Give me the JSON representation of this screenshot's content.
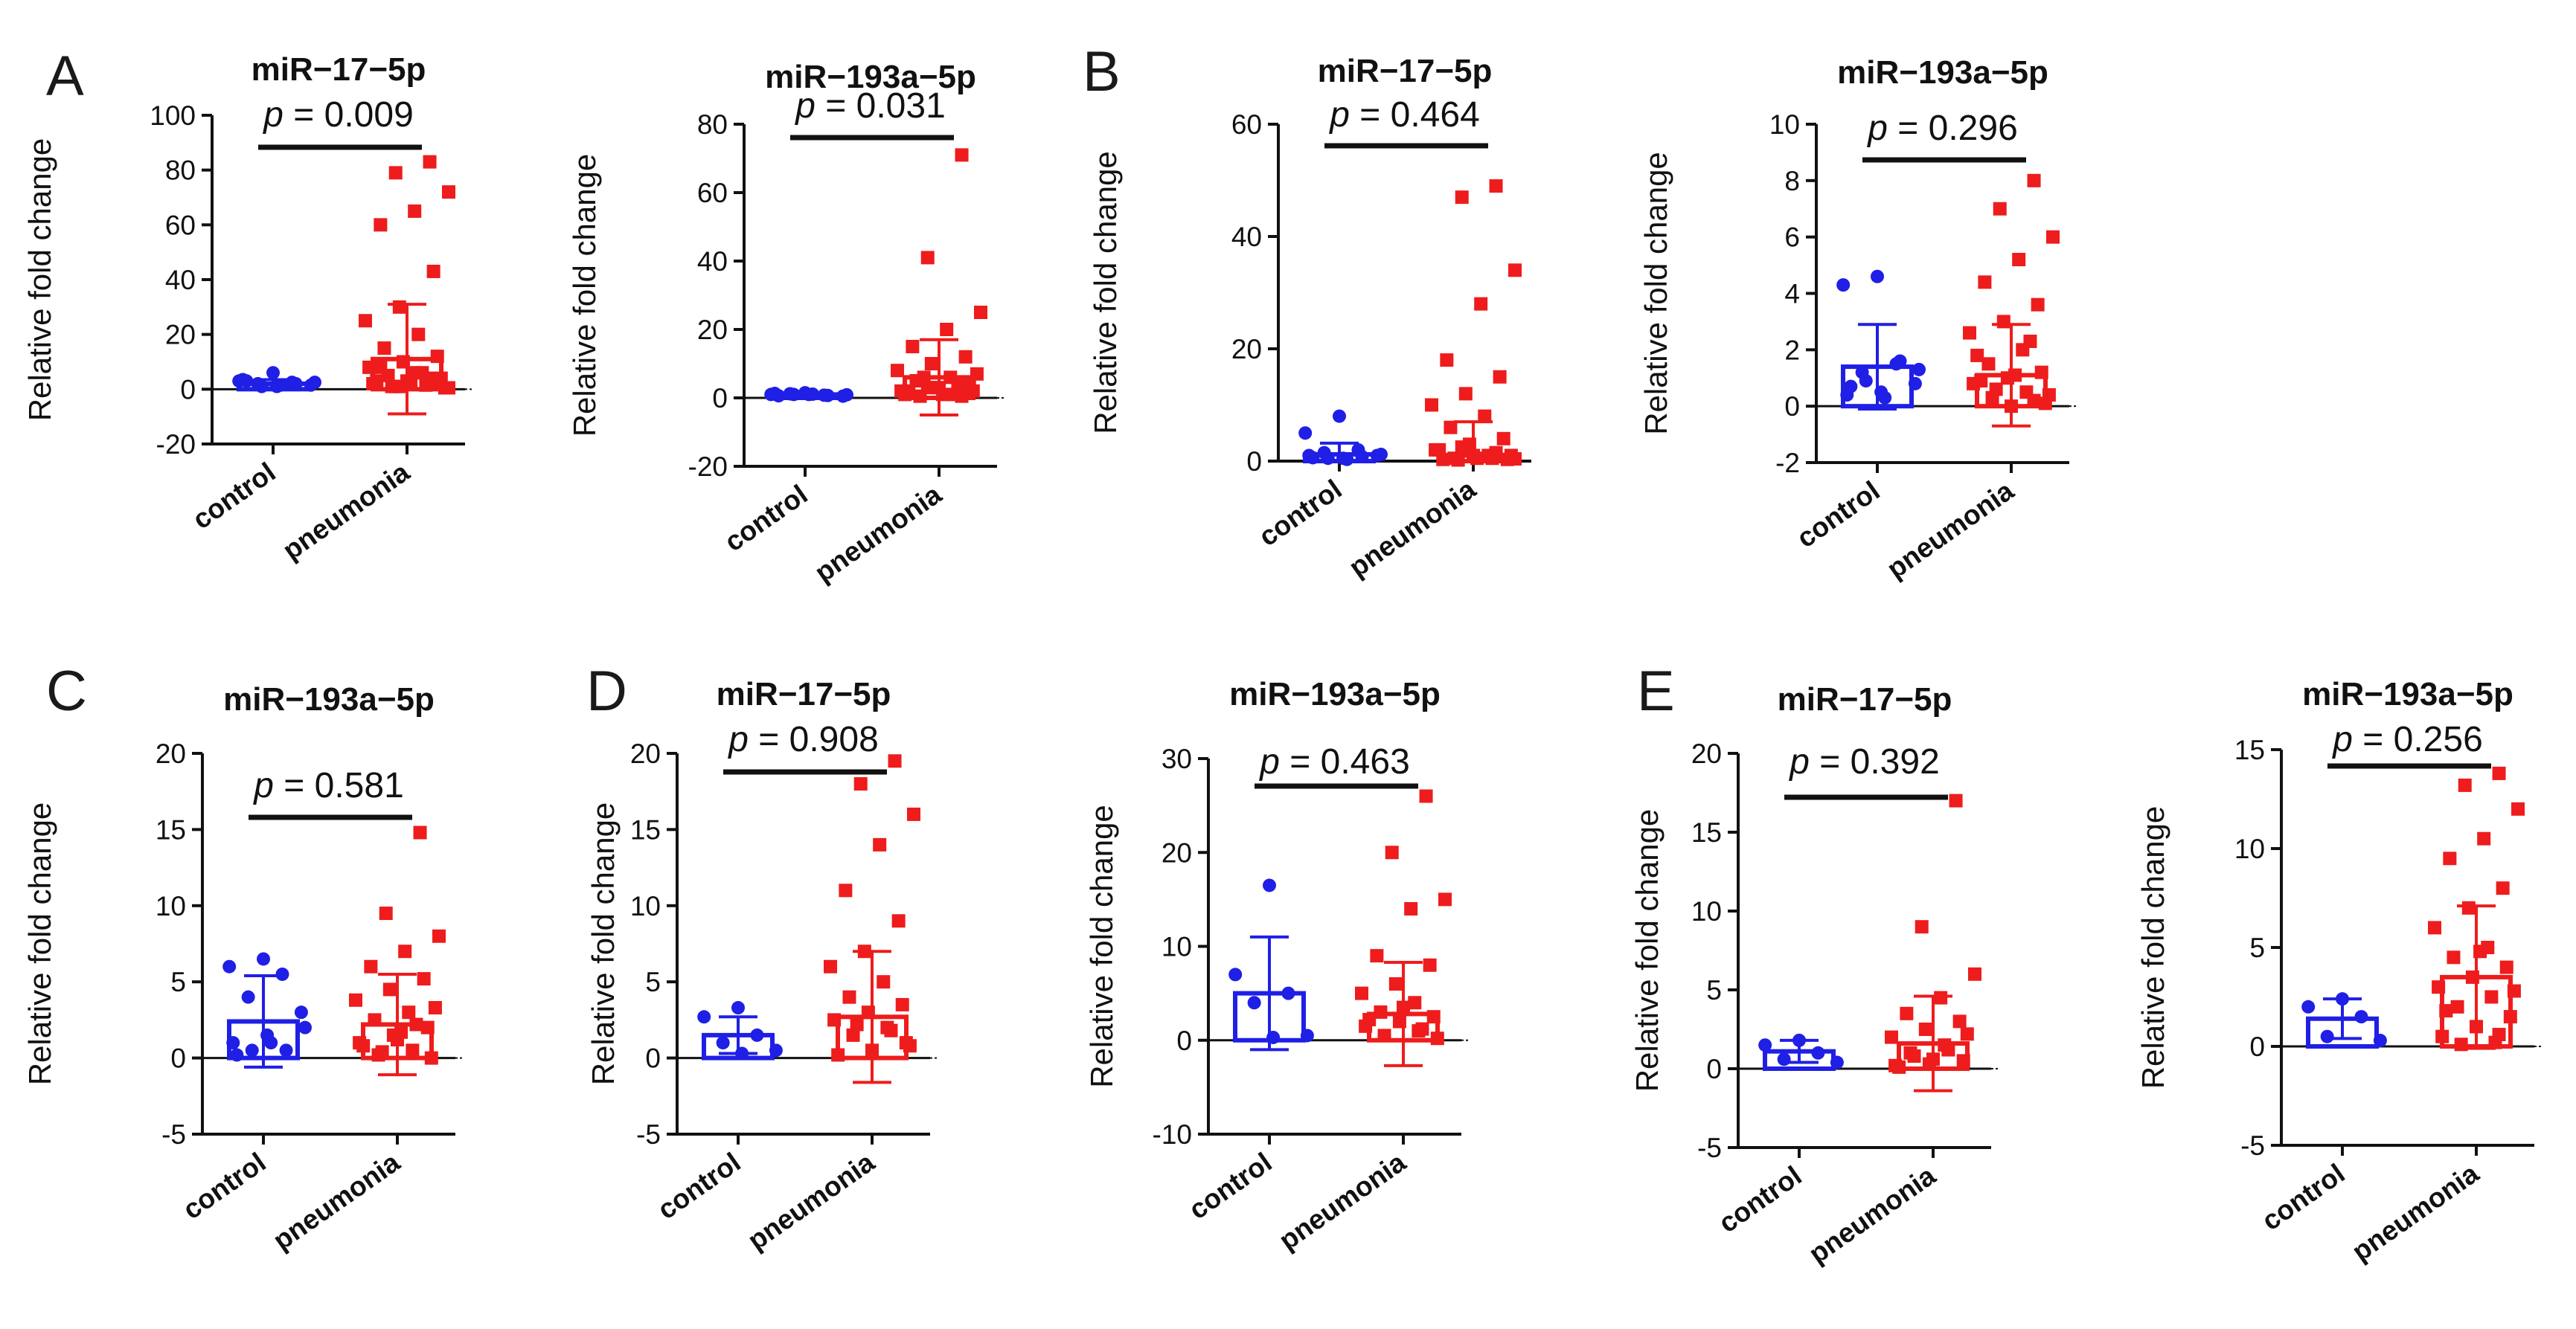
{
  "figure": {
    "panel_letters": [
      "A",
      "B",
      "C",
      "D",
      "E"
    ]
  },
  "chart_data": [
    {
      "type": "bar",
      "panel": "A",
      "title": "miR−17−5p",
      "ylabel": "Relative fold change",
      "ylim": [
        -20,
        100
      ],
      "yticks": [
        -20,
        0,
        20,
        40,
        60,
        80,
        100
      ],
      "p_label": "p",
      "p_text": " = 0.009",
      "colors": {
        "control": "#1f1fe6",
        "pneumonia": "#ee1c1c"
      },
      "categories": [
        "control",
        "pneumonia"
      ],
      "series": [
        {
          "name": "control",
          "mean": 2,
          "sd": 1.5,
          "points": [
            6,
            3,
            2.5,
            2,
            1.5,
            1,
            3.5,
            2,
            1,
            2.5,
            1.5,
            3
          ]
        },
        {
          "name": "pneumonia",
          "mean": 11,
          "sd": 20,
          "points": [
            83,
            79,
            72,
            65,
            60,
            43,
            30,
            25,
            20,
            15,
            12,
            10,
            8,
            6,
            5,
            4,
            3,
            2,
            1.5,
            1,
            0.5,
            2,
            3,
            4,
            1,
            0.5,
            6,
            8,
            2,
            1
          ]
        }
      ]
    },
    {
      "type": "bar",
      "panel": "A",
      "title": "miR−193a−5p",
      "ylabel": "Relative fold change",
      "ylim": [
        -20,
        80
      ],
      "yticks": [
        -20,
        0,
        20,
        40,
        60,
        80
      ],
      "p_label": "p",
      "p_text": " = 0.031",
      "colors": {
        "control": "#1f1fe6",
        "pneumonia": "#ee1c1c"
      },
      "categories": [
        "control",
        "pneumonia"
      ],
      "series": [
        {
          "name": "control",
          "mean": 1,
          "sd": 0.5,
          "points": [
            1.5,
            1,
            0.8,
            1.2,
            0.5,
            1,
            1.3,
            0.7,
            1,
            0.9,
            1.1,
            0.6
          ]
        },
        {
          "name": "pneumonia",
          "mean": 6,
          "sd": 11,
          "points": [
            71,
            41,
            25,
            20,
            15,
            12,
            10,
            8,
            6,
            5,
            4,
            3,
            2,
            1,
            0.5,
            2,
            3,
            1,
            4,
            6,
            7,
            1,
            2,
            0.5,
            3
          ]
        }
      ]
    },
    {
      "type": "bar",
      "panel": "B",
      "title": "miR−17−5p",
      "ylabel": "Relative fold change",
      "ylim": [
        0,
        60
      ],
      "yticks": [
        0,
        20,
        40,
        60
      ],
      "p_label": "p",
      "p_text": " = 0.464",
      "colors": {
        "control": "#1f1fe6",
        "pneumonia": "#ee1c1c"
      },
      "categories": [
        "control",
        "pneumonia"
      ],
      "series": [
        {
          "name": "control",
          "mean": 1.2,
          "sd": 2,
          "points": [
            8,
            5,
            2,
            1.5,
            1,
            0.5,
            1,
            0.8,
            0.5,
            1.2,
            0.3,
            0.6
          ]
        },
        {
          "name": "pneumonia",
          "mean": 1,
          "sd": 6,
          "points": [
            49,
            47,
            34,
            28,
            18,
            15,
            12,
            10,
            8,
            6,
            4,
            3,
            2,
            1,
            0.5,
            0.3,
            1,
            2,
            0.5,
            0.2,
            1,
            0.5,
            0.3,
            1.5,
            2.5,
            0.4
          ]
        }
      ]
    },
    {
      "type": "bar",
      "panel": "B",
      "title": "miR−193a−5p",
      "ylabel": "Relative fold change",
      "ylim": [
        -2,
        10
      ],
      "yticks": [
        -2,
        0,
        2,
        4,
        6,
        8,
        10
      ],
      "p_label": "p",
      "p_text": " = 0.296",
      "colors": {
        "control": "#1f1fe6",
        "pneumonia": "#ee1c1c"
      },
      "categories": [
        "control",
        "pneumonia"
      ],
      "series": [
        {
          "name": "control",
          "mean": 1.4,
          "sd": 1.5,
          "points": [
            4.6,
            4.3,
            1.5,
            1.2,
            0.8,
            0.5,
            0.4,
            1.6,
            0.9,
            1.3,
            0.3,
            0.7
          ]
        },
        {
          "name": "pneumonia",
          "mean": 1.1,
          "sd": 1.8,
          "points": [
            8,
            7,
            6,
            5.2,
            4.4,
            3.6,
            3,
            2.6,
            2,
            1.5,
            1.2,
            1,
            0.8,
            0.5,
            0.3,
            0.1,
            0,
            1.8,
            2.3,
            0.6,
            0.4,
            1.1,
            0.9,
            0.2
          ]
        }
      ]
    },
    {
      "type": "bar",
      "panel": "C",
      "title": "miR−193a−5p",
      "ylabel": "Relative fold change",
      "ylim": [
        -5,
        20
      ],
      "yticks": [
        -5,
        0,
        5,
        10,
        15,
        20
      ],
      "p_label": "p",
      "p_text": " = 0.581",
      "colors": {
        "control": "#1f1fe6",
        "pneumonia": "#ee1c1c"
      },
      "categories": [
        "control",
        "pneumonia"
      ],
      "series": [
        {
          "name": "control",
          "mean": 2.4,
          "sd": 3,
          "points": [
            6.5,
            6,
            5.5,
            4,
            3,
            1.5,
            1,
            0.5,
            0.5,
            2,
            1,
            0.2
          ]
        },
        {
          "name": "pneumonia",
          "mean": 2.2,
          "sd": 3.3,
          "points": [
            14.8,
            9.5,
            8,
            7,
            6,
            5.2,
            4.5,
            3.8,
            3,
            2.5,
            2,
            1.5,
            1,
            0.5,
            0.2,
            0,
            1.2,
            0.8,
            2.2,
            0.4,
            3.3,
            1.7
          ]
        }
      ]
    },
    {
      "type": "bar",
      "panel": "D",
      "title": "miR−17−5p",
      "ylabel": "Relative fold change",
      "ylim": [
        -5,
        20
      ],
      "yticks": [
        -5,
        0,
        5,
        10,
        15,
        20
      ],
      "p_label": "p",
      "p_text": " = 0.908",
      "colors": {
        "control": "#1f1fe6",
        "pneumonia": "#ee1c1c"
      },
      "categories": [
        "control",
        "pneumonia"
      ],
      "series": [
        {
          "name": "control",
          "mean": 1.5,
          "sd": 1.2,
          "points": [
            3.3,
            2.7,
            1.5,
            1,
            0.5,
            0.3
          ]
        },
        {
          "name": "pneumonia",
          "mean": 2.7,
          "sd": 4.3,
          "points": [
            19.5,
            18,
            16,
            14,
            11,
            9,
            7,
            6,
            5,
            4,
            3.5,
            3,
            2.5,
            2,
            1.5,
            1,
            0.5,
            0.2,
            1.8,
            2.2,
            0.8
          ]
        }
      ]
    },
    {
      "type": "bar",
      "panel": "D",
      "title": "miR−193a−5p",
      "ylabel": "Relative fold change",
      "ylim": [
        -10,
        30
      ],
      "yticks": [
        -10,
        0,
        10,
        20,
        30
      ],
      "p_label": "p",
      "p_text": " = 0.463",
      "colors": {
        "control": "#1f1fe6",
        "pneumonia": "#ee1c1c"
      },
      "categories": [
        "control",
        "pneumonia"
      ],
      "series": [
        {
          "name": "control",
          "mean": 5,
          "sd": 6,
          "points": [
            16.5,
            7,
            5,
            4,
            0.5,
            0.3
          ]
        },
        {
          "name": "pneumonia",
          "mean": 2.8,
          "sd": 5.5,
          "points": [
            26,
            20,
            15,
            14,
            9,
            8,
            6,
            5,
            4,
            3,
            2.5,
            2,
            1.5,
            1,
            0.5,
            0.2,
            3.5,
            2.2,
            1.2
          ]
        }
      ]
    },
    {
      "type": "bar",
      "panel": "E",
      "title": "miR−17−5p",
      "ylabel": "Relative fold change",
      "ylim": [
        -5,
        20
      ],
      "yticks": [
        -5,
        0,
        5,
        10,
        15,
        20
      ],
      "p_label": "p",
      "p_text": " = 0.392",
      "colors": {
        "control": "#1f1fe6",
        "pneumonia": "#ee1c1c"
      },
      "categories": [
        "control",
        "pneumonia"
      ],
      "series": [
        {
          "name": "control",
          "mean": 1.1,
          "sd": 0.7,
          "points": [
            1.8,
            1.5,
            1,
            0.6,
            0.4
          ]
        },
        {
          "name": "pneumonia",
          "mean": 1.6,
          "sd": 3,
          "points": [
            17,
            9,
            6,
            4.5,
            3.5,
            3,
            2.5,
            2,
            1.5,
            1,
            0.5,
            0.3,
            0.2,
            1.2,
            0.8,
            2.2,
            0.6,
            0.1
          ]
        }
      ]
    },
    {
      "type": "bar",
      "panel": "E",
      "title": "miR−193a−5p",
      "ylabel": "Relative fold change",
      "ylim": [
        -5,
        15
      ],
      "yticks": [
        -5,
        0,
        5,
        10,
        15
      ],
      "p_label": "p",
      "p_text": " = 0.256",
      "colors": {
        "control": "#1f1fe6",
        "pneumonia": "#ee1c1c"
      },
      "categories": [
        "control",
        "pneumonia"
      ],
      "series": [
        {
          "name": "control",
          "mean": 1.4,
          "sd": 1,
          "points": [
            2.4,
            2,
            1.5,
            0.5,
            0.3
          ]
        },
        {
          "name": "pneumonia",
          "mean": 3.5,
          "sd": 3.6,
          "points": [
            13.8,
            13.2,
            12,
            10.5,
            9.5,
            8,
            7,
            6,
            5,
            4.5,
            4,
            3.5,
            3,
            2.5,
            2,
            1.5,
            1,
            0.5,
            0.2,
            0.1,
            2.8,
            4.8,
            1.8,
            0.6
          ]
        }
      ]
    }
  ]
}
